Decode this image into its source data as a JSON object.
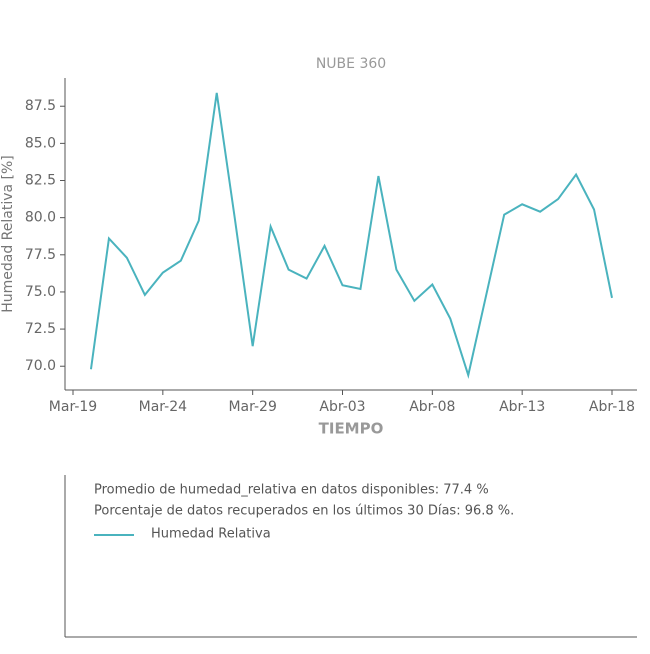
{
  "chart_data": {
    "type": "line",
    "title": "NUBE 360",
    "x_label": "TIEMPO",
    "y_label": "Humedad Relativa [%]",
    "x": [
      "03-20",
      "03-21",
      "03-22",
      "03-23",
      "03-24",
      "03-25",
      "03-26",
      "03-27",
      "03-28",
      "03-29",
      "03-30",
      "03-31",
      "04-01",
      "04-02",
      "04-03",
      "04-04",
      "04-05",
      "04-06",
      "04-07",
      "04-08",
      "04-09",
      "04-10",
      "04-11",
      "04-12",
      "04-13",
      "04-14",
      "04-15",
      "04-16",
      "04-17",
      "04-18"
    ],
    "series": [
      {
        "name": "Humedad Relativa",
        "color": "#4ab3be",
        "values": [
          69.8,
          78.6,
          77.3,
          74.8,
          76.3,
          77.1,
          79.8,
          88.4,
          80.0,
          71.35,
          79.4,
          76.5,
          75.9,
          78.1,
          75.45,
          75.2,
          82.8,
          76.5,
          74.4,
          75.5,
          73.2,
          69.4,
          74.8,
          80.2,
          80.9,
          80.4,
          81.25,
          82.9,
          80.55,
          74.6
        ]
      }
    ],
    "xlim": [
      "03-19",
      "04-18"
    ],
    "xticks": [
      {
        "value": "03-19",
        "label": "Mar-19"
      },
      {
        "value": "03-24",
        "label": "Mar-24"
      },
      {
        "value": "03-29",
        "label": "Mar-29"
      },
      {
        "value": "04-03",
        "label": "Abr-03"
      },
      {
        "value": "04-08",
        "label": "Abr-08"
      },
      {
        "value": "04-13",
        "label": "Abr-13"
      },
      {
        "value": "04-18",
        "label": "Abr-18"
      }
    ],
    "ylim": [
      68.4,
      89.4
    ],
    "yticks": [
      {
        "value": 70,
        "label": "70.0"
      },
      72.5,
      {
        "value": 75,
        "label": "75.0"
      },
      77.5,
      {
        "value": 80,
        "label": "80.0"
      },
      82.5,
      {
        "value": 85,
        "label": "85.0"
      },
      87.5
    ],
    "notes": [
      "Promedio de humedad_relativa en datos disponibles: 77.4 %",
      "Porcentaje de datos recuperados en los últimos 30 Días: 96.8 %."
    ]
  }
}
